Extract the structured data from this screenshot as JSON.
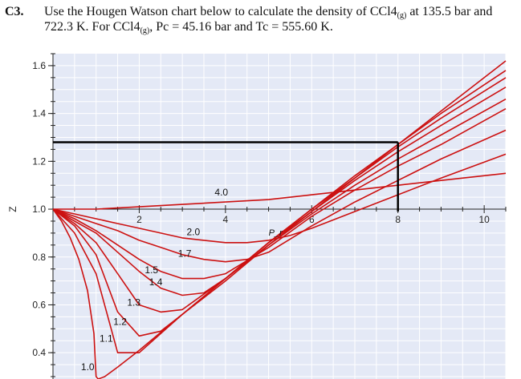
{
  "question": {
    "number": "C3.",
    "line1_a": "Use the Hougen Watson chart below to calculate the density of CCl4",
    "line1_sub": "(g)",
    "line1_b": " at 135.5 bar and",
    "line2_a": "722.3 K. For CCl4",
    "line2_sub": "(g)",
    "line2_b": ", Pc = 45.16 bar and Tc = 555.60 K."
  },
  "chart_data": {
    "type": "line",
    "title": "",
    "xlabel": "P_r",
    "ylabel": "Z",
    "xlim": [
      0,
      10.5
    ],
    "ylim": [
      0.29,
      1.65
    ],
    "x_ticks": [
      2,
      4,
      6,
      8,
      10
    ],
    "x_tick_labels": [
      "2",
      "4",
      "6",
      "8",
      "10"
    ],
    "y_ticks": [
      0.4,
      0.6,
      0.8,
      1.0,
      1.2,
      1.4,
      1.6
    ],
    "y_tick_labels": [
      "0.4",
      "0.6",
      "0.8",
      "1.0",
      "1.2",
      "1.4",
      "1.6"
    ],
    "background_color": "#e4e9f6",
    "grid_color": "#ffffff",
    "curve_color": "#cc1111",
    "guide_color": "#000000",
    "series": [
      {
        "name": "1.0",
        "label_at": [
          0.65,
          0.34
        ],
        "x": [
          0,
          0.2,
          0.4,
          0.6,
          0.8,
          0.95,
          1.0,
          1.05,
          1.2,
          1.5,
          2,
          3,
          4,
          5,
          6,
          7,
          8,
          9,
          10.5
        ],
        "y": [
          1.0,
          0.95,
          0.88,
          0.79,
          0.66,
          0.48,
          0.3,
          0.29,
          0.3,
          0.34,
          0.41,
          0.56,
          0.7,
          0.85,
          0.99,
          1.13,
          1.27,
          1.41,
          1.62
        ]
      },
      {
        "name": "1.1",
        "label_at": [
          1.08,
          0.46
        ],
        "x": [
          0,
          0.5,
          1.0,
          1.5,
          2,
          3,
          4,
          5,
          6,
          7,
          8,
          9,
          10.5
        ],
        "y": [
          1.0,
          0.9,
          0.73,
          0.4,
          0.4,
          0.56,
          0.71,
          0.86,
          1.0,
          1.14,
          1.27,
          1.4,
          1.58
        ]
      },
      {
        "name": "1.2",
        "label_at": [
          1.4,
          0.53
        ],
        "x": [
          0,
          0.5,
          1.0,
          1.5,
          2,
          2.5,
          3,
          4,
          5,
          6,
          7,
          8,
          9,
          10.5
        ],
        "y": [
          1.0,
          0.93,
          0.81,
          0.57,
          0.47,
          0.49,
          0.56,
          0.71,
          0.86,
          1.0,
          1.13,
          1.26,
          1.38,
          1.55
        ]
      },
      {
        "name": "1.3",
        "label_at": [
          1.72,
          0.61
        ],
        "x": [
          0,
          0.5,
          1.0,
          1.5,
          2,
          2.5,
          3,
          4,
          5,
          6,
          7,
          8,
          9,
          10.5
        ],
        "y": [
          1.0,
          0.94,
          0.86,
          0.73,
          0.6,
          0.57,
          0.58,
          0.71,
          0.86,
          0.99,
          1.12,
          1.24,
          1.35,
          1.51
        ]
      },
      {
        "name": "1.4",
        "label_at": [
          2.23,
          0.695
        ],
        "x": [
          0,
          0.5,
          1,
          1.5,
          2,
          2.5,
          3,
          3.5,
          4,
          5,
          6,
          7,
          8,
          9,
          10.5
        ],
        "y": [
          1.0,
          0.95,
          0.9,
          0.82,
          0.74,
          0.67,
          0.64,
          0.65,
          0.71,
          0.85,
          0.98,
          1.1,
          1.21,
          1.31,
          1.46
        ]
      },
      {
        "name": "1.5",
        "label_at": [
          2.13,
          0.745
        ],
        "x": [
          0,
          0.5,
          1,
          1.5,
          2,
          2.5,
          3,
          3.5,
          4,
          5,
          6,
          7,
          8,
          9,
          10.5
        ],
        "y": [
          1.0,
          0.96,
          0.91,
          0.85,
          0.79,
          0.74,
          0.71,
          0.71,
          0.73,
          0.84,
          0.97,
          1.08,
          1.18,
          1.27,
          1.42
        ]
      },
      {
        "name": "1.7",
        "label_at": [
          2.9,
          0.815
        ],
        "x": [
          0,
          0.5,
          1,
          1.5,
          2,
          2.5,
          3,
          3.5,
          4,
          4.5,
          5,
          6,
          7,
          8,
          9,
          10.5
        ],
        "y": [
          1.0,
          0.97,
          0.94,
          0.91,
          0.87,
          0.84,
          0.81,
          0.79,
          0.78,
          0.79,
          0.82,
          0.93,
          1.03,
          1.12,
          1.21,
          1.33
        ]
      },
      {
        "name": "2.0",
        "label_at": [
          3.1,
          0.905
        ],
        "x": [
          0,
          0.5,
          1,
          1.5,
          2,
          2.5,
          3,
          3.5,
          4,
          4.5,
          5,
          5.5,
          6,
          7,
          8,
          9,
          10.5
        ],
        "y": [
          1.0,
          0.98,
          0.96,
          0.94,
          0.92,
          0.9,
          0.88,
          0.87,
          0.86,
          0.86,
          0.87,
          0.89,
          0.92,
          0.99,
          1.06,
          1.13,
          1.23
        ]
      },
      {
        "name": "4.0",
        "label_at": [
          3.75,
          1.07
        ],
        "x": [
          0,
          1,
          2,
          3,
          4,
          5,
          6,
          7,
          8,
          9,
          10.5
        ],
        "y": [
          1.0,
          1.0,
          1.01,
          1.02,
          1.03,
          1.04,
          1.06,
          1.08,
          1.1,
          1.12,
          1.15
        ]
      }
    ],
    "annotation": {
      "text": "P_r",
      "label_at": [
        5.0,
        0.89
      ]
    },
    "guide": {
      "x_at": 8.0,
      "y_at": 1.28
    }
  }
}
